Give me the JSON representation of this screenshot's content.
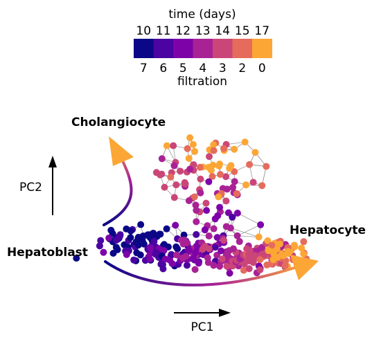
{
  "colorbar": {
    "top_title": "time (days)",
    "bottom_title": "filtration",
    "segments": [
      {
        "time": "10",
        "filtration": "7",
        "color": "#0c0786"
      },
      {
        "time": "11",
        "filtration": "6",
        "color": "#4b03a1"
      },
      {
        "time": "12",
        "filtration": "5",
        "color": "#7d03a8"
      },
      {
        "time": "13",
        "filtration": "4",
        "color": "#a82296"
      },
      {
        "time": "14",
        "filtration": "3",
        "color": "#cb4678"
      },
      {
        "time": "15",
        "filtration": "2",
        "color": "#e56b5d"
      },
      {
        "time": "17",
        "filtration": "0",
        "color": "#fca636"
      }
    ]
  },
  "labels": {
    "cholangiocyte": "Cholangiocyte",
    "hepatoblast": "Hepatoblast",
    "hepatocyte": "Hepatocyte"
  },
  "axes": {
    "x_label": "PC1",
    "y_label": "PC2"
  },
  "colors": {
    "arrow_start": "#0c0786",
    "arrow_mid": "#a82296",
    "arrow_end": "#fca636",
    "edge": "#999999"
  }
}
